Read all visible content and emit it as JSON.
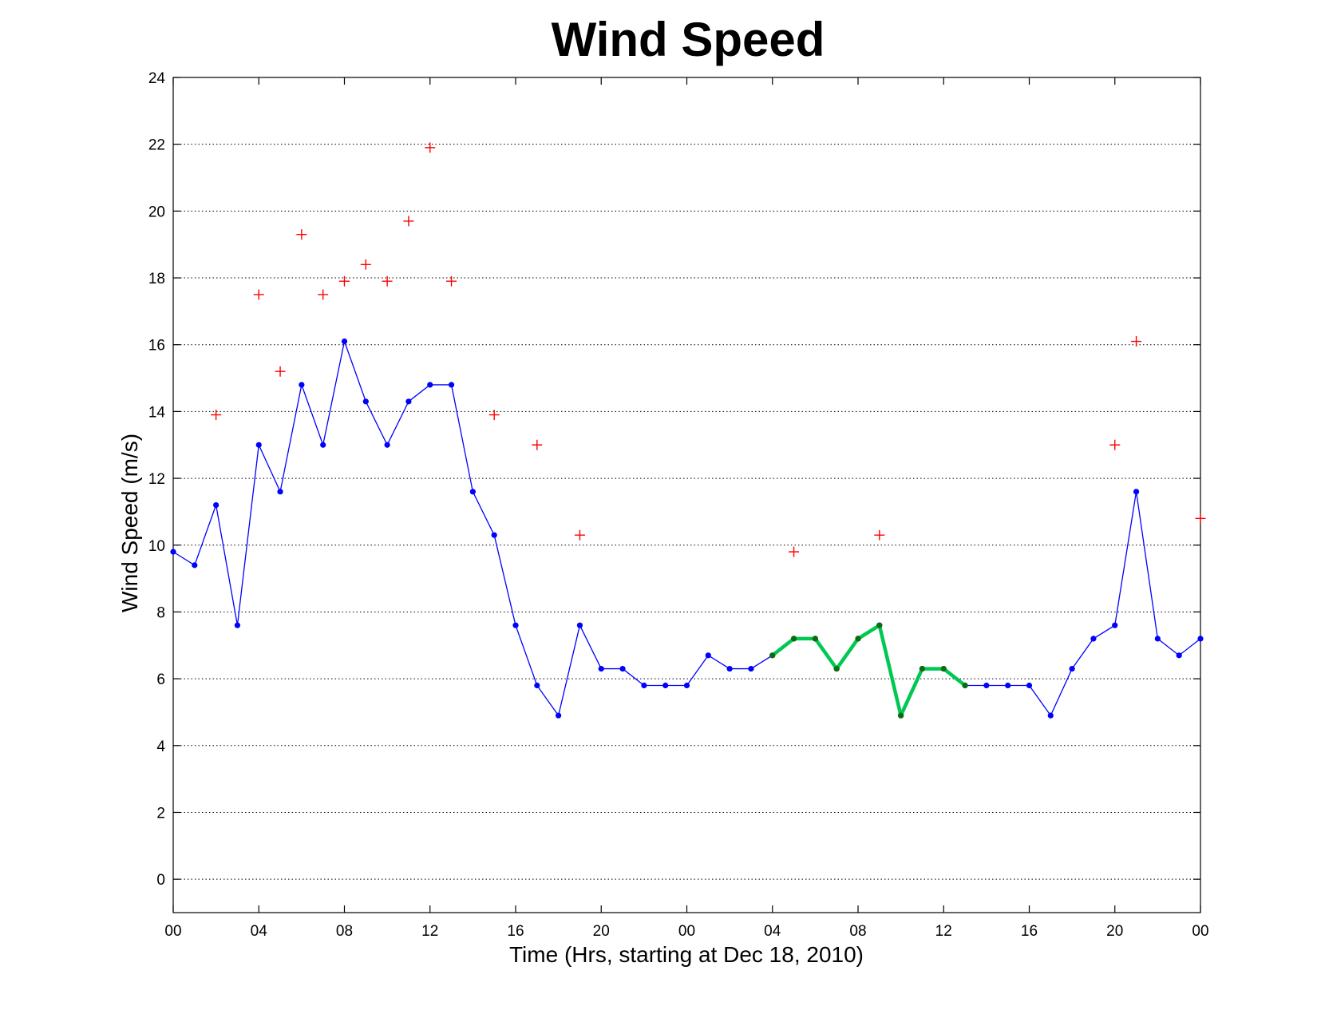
{
  "chart_data": {
    "type": "line",
    "title": "Wind Speed",
    "xlabel": "Time (Hrs, starting at Dec 18, 2010)",
    "ylabel": "Wind Speed (m/s)",
    "xlim": [
      0,
      48
    ],
    "ylim": [
      -1,
      24
    ],
    "grid": "y-dotted",
    "x_ticks": [
      {
        "hour": 0,
        "label": "00"
      },
      {
        "hour": 4,
        "label": "04"
      },
      {
        "hour": 8,
        "label": "08"
      },
      {
        "hour": 12,
        "label": "12"
      },
      {
        "hour": 16,
        "label": "16"
      },
      {
        "hour": 20,
        "label": "20"
      },
      {
        "hour": 24,
        "label": "00"
      },
      {
        "hour": 28,
        "label": "04"
      },
      {
        "hour": 32,
        "label": "08"
      },
      {
        "hour": 36,
        "label": "12"
      },
      {
        "hour": 40,
        "label": "16"
      },
      {
        "hour": 44,
        "label": "20"
      },
      {
        "hour": 48,
        "label": "00"
      }
    ],
    "y_ticks": [
      0,
      2,
      4,
      6,
      8,
      10,
      12,
      14,
      16,
      18,
      20,
      22,
      24
    ],
    "series": [
      {
        "style": "line-dots",
        "color": "#0000ff",
        "x": [
          0,
          1,
          2,
          3,
          4,
          5,
          6,
          7,
          8,
          9,
          10,
          11,
          12,
          13,
          14,
          15,
          16,
          17,
          18,
          19,
          20,
          21,
          22,
          23,
          24,
          25,
          26,
          27,
          28,
          29,
          30,
          31,
          32,
          33,
          34,
          35,
          36,
          37,
          38,
          39,
          40,
          41,
          42,
          43,
          44,
          45,
          46,
          47,
          48
        ],
        "y": [
          9.8,
          9.4,
          11.2,
          7.6,
          13.0,
          11.6,
          14.8,
          13.0,
          16.1,
          14.3,
          13.0,
          14.3,
          14.8,
          14.8,
          11.6,
          10.3,
          7.6,
          5.8,
          4.9,
          7.6,
          6.3,
          6.3,
          5.8,
          5.8,
          5.8,
          6.7,
          6.3,
          6.3,
          6.7,
          7.2,
          7.2,
          6.3,
          7.2,
          7.6,
          4.9,
          6.3,
          6.3,
          5.8,
          5.8,
          5.8,
          5.8,
          4.9,
          6.3,
          7.2,
          7.6,
          11.6,
          7.2,
          6.7,
          7.2
        ]
      },
      {
        "style": "thick-line",
        "color": "#00c853",
        "marker_color": "#0a6e0a",
        "x": [
          28,
          29,
          30,
          31,
          32,
          33,
          34,
          35,
          36,
          37
        ],
        "y": [
          6.7,
          7.2,
          7.2,
          6.3,
          7.2,
          7.6,
          4.9,
          6.3,
          6.3,
          5.8
        ]
      },
      {
        "style": "plus-markers",
        "color": "#ff0000",
        "x": [
          2,
          4,
          5,
          6,
          7,
          8,
          9,
          10,
          11,
          12,
          13,
          15,
          17,
          19,
          29,
          33,
          44,
          45,
          48
        ],
        "y": [
          13.9,
          17.5,
          15.2,
          19.3,
          17.5,
          17.9,
          18.4,
          17.9,
          19.7,
          21.9,
          17.9,
          13.9,
          13.0,
          10.3,
          9.8,
          10.3,
          13.0,
          16.1,
          10.8
        ]
      }
    ]
  }
}
